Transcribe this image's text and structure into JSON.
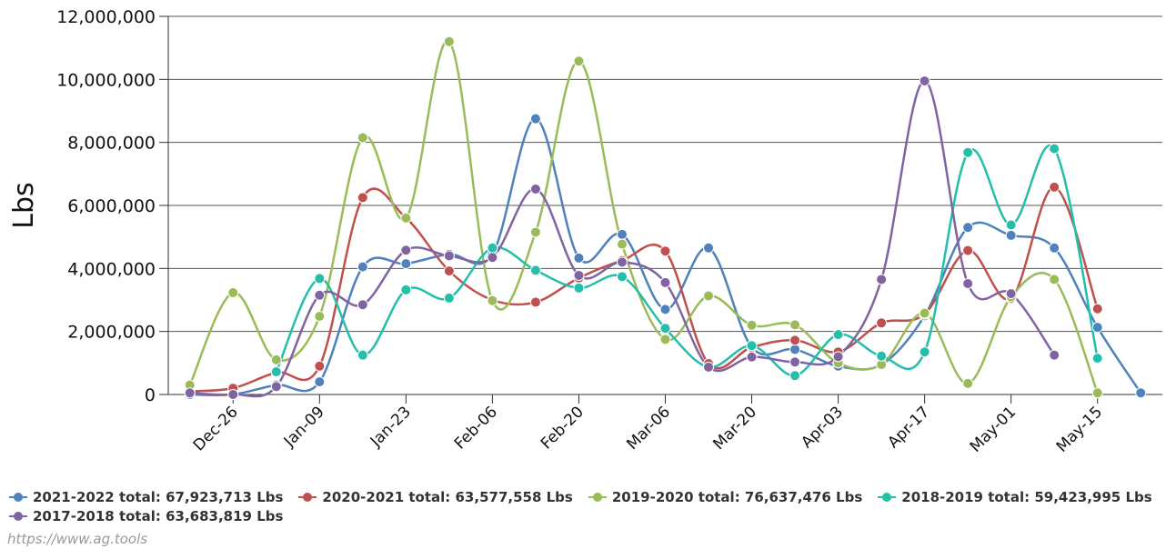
{
  "chart_data": {
    "type": "line",
    "ylabel": "Lbs",
    "xlabel": "",
    "ylim": [
      0,
      12000000
    ],
    "y_ticks": [
      0,
      2000000,
      4000000,
      6000000,
      8000000,
      10000000,
      12000000
    ],
    "y_tick_labels": [
      "0",
      "2,000,000",
      "4,000,000",
      "6,000,000",
      "8,000,000",
      "10,000,000",
      "12,000,000"
    ],
    "x_tick_labels": [
      "Dec-26",
      "Jan-09",
      "Jan-23",
      "Feb-06",
      "Feb-20",
      "Mar-06",
      "Mar-20",
      "Apr-03",
      "Apr-17",
      "May-01",
      "May-15"
    ],
    "x_tick_positions": [
      1,
      3,
      5,
      7,
      9,
      11,
      13,
      15,
      17,
      19,
      21
    ],
    "x_range": [
      -0.5,
      22.5
    ],
    "smooth": true,
    "grid": {
      "horizontal": true,
      "vertical": false
    },
    "legend_position": "bottom-left",
    "series": [
      {
        "name": "2021-2022 total: 67,923,713 Lbs",
        "color": "#4f81bd",
        "x": [
          0,
          1,
          2,
          3,
          4,
          5,
          6,
          7,
          8,
          9,
          10,
          11,
          12,
          13,
          14,
          15,
          16,
          17,
          18,
          19,
          20,
          21,
          22
        ],
        "values": [
          0,
          0,
          300000,
          400000,
          4050000,
          4150000,
          4450000,
          4450000,
          8750000,
          4330000,
          5080000,
          2700000,
          4650000,
          1500000,
          1430000,
          900000,
          950000,
          2500000,
          5300000,
          5050000,
          4650000,
          2130000,
          50000
        ]
      },
      {
        "name": "2020-2021 total: 63,577,558 Lbs",
        "color": "#c0504d",
        "x": [
          0,
          1,
          2,
          3,
          4,
          5,
          6,
          7,
          8,
          9,
          10,
          11,
          12,
          13,
          14,
          15,
          16,
          17,
          18,
          19,
          20,
          21
        ],
        "values": [
          100000,
          200000,
          700000,
          900000,
          6250000,
          5600000,
          3920000,
          3000000,
          2930000,
          3700000,
          4250000,
          4550000,
          980000,
          1500000,
          1720000,
          1350000,
          2270000,
          2550000,
          4570000,
          3050000,
          6580000,
          2720000
        ]
      },
      {
        "name": "2019-2020 total: 76,637,476 Lbs",
        "color": "#9bbb59",
        "x": [
          0,
          1,
          2,
          3,
          4,
          5,
          6,
          7,
          8,
          9,
          10,
          11,
          12,
          13,
          14,
          15,
          16,
          17,
          18,
          19,
          20,
          21
        ],
        "values": [
          300000,
          3230000,
          1100000,
          2480000,
          8150000,
          5600000,
          11200000,
          2980000,
          5150000,
          10580000,
          4770000,
          1750000,
          3130000,
          2200000,
          2210000,
          1000000,
          950000,
          2580000,
          350000,
          3100000,
          3650000,
          50000
        ]
      },
      {
        "name": "2018-2019 total: 59,423,995 Lbs",
        "color": "#23bfaa",
        "x": [
          2,
          3,
          4,
          5,
          6,
          7,
          8,
          9,
          10,
          11,
          12,
          13,
          14,
          15,
          16,
          17,
          18,
          19,
          20,
          21
        ],
        "values": [
          720000,
          3680000,
          1250000,
          3320000,
          3060000,
          4650000,
          3940000,
          3380000,
          3740000,
          2100000,
          870000,
          1550000,
          600000,
          1900000,
          1220000,
          1350000,
          7680000,
          5380000,
          7800000,
          1150000
        ]
      },
      {
        "name": "2017-2018 total: 63,683,819 Lbs",
        "color": "#8064a2",
        "x": [
          0,
          1,
          2,
          3,
          4,
          5,
          6,
          7,
          8,
          9,
          10,
          11,
          12,
          13,
          14,
          15,
          16,
          17,
          18,
          19,
          20
        ],
        "values": [
          50000,
          0,
          250000,
          3150000,
          2850000,
          4580000,
          4400000,
          4350000,
          6520000,
          3780000,
          4200000,
          3550000,
          870000,
          1190000,
          1030000,
          1200000,
          3650000,
          9950000,
          3520000,
          3200000,
          1250000
        ]
      }
    ]
  },
  "legend_rows": [
    [
      0,
      1,
      2,
      3
    ],
    [
      4
    ]
  ],
  "source": "https://www.ag.tools"
}
